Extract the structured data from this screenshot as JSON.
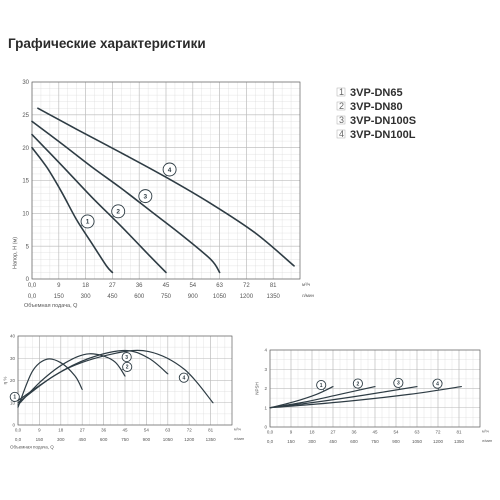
{
  "page": {
    "title": "Графические характеристики"
  },
  "legend": [
    {
      "num": "1",
      "name": "3VP-DN65"
    },
    {
      "num": "2",
      "name": "3VP-DN80"
    },
    {
      "num": "3",
      "name": "3VP-DN100S"
    },
    {
      "num": "4",
      "name": "3VP-DN100L"
    }
  ],
  "chart_data": [
    {
      "id": "head",
      "type": "line",
      "xlabel": "Объемная подача, Q",
      "ylabel": "Напор, Н (м)",
      "x_unit_primary": "м³/ч",
      "x_unit_secondary": "л/мин",
      "xlim": [
        0,
        90
      ],
      "ylim": [
        0,
        30
      ],
      "x_ticks": [
        "0,0",
        "9",
        "18",
        "27",
        "36",
        "45",
        "54",
        "63",
        "72",
        "81"
      ],
      "x_ticks_secondary": [
        "0,0",
        "150",
        "300",
        "450",
        "600",
        "750",
        "900",
        "1050",
        "1200",
        "1350"
      ],
      "y_ticks": [
        "0",
        "5",
        "10",
        "15",
        "20",
        "25",
        "30"
      ],
      "grid": true,
      "legend_position": "right",
      "series": [
        {
          "label": "1",
          "x": [
            0,
            5,
            10,
            15,
            20,
            25,
            27
          ],
          "y": [
            20,
            17,
            13.2,
            9,
            5.5,
            2,
            1
          ]
        },
        {
          "label": "2",
          "x": [
            0,
            10,
            20,
            30,
            40,
            45
          ],
          "y": [
            22,
            17.3,
            12.5,
            8,
            3.3,
            1
          ]
        },
        {
          "label": "3",
          "x": [
            0,
            10,
            20,
            30,
            40,
            50,
            60,
            63
          ],
          "y": [
            24,
            20.6,
            17.1,
            13.8,
            10.3,
            6.8,
            3,
            1
          ]
        },
        {
          "label": "4",
          "x": [
            2,
            15,
            30,
            45,
            60,
            75,
            88
          ],
          "y": [
            26,
            22.8,
            19.2,
            15.5,
            11.5,
            7,
            2
          ]
        }
      ]
    },
    {
      "id": "efficiency",
      "type": "line",
      "xlabel": "Объемная подача, Q",
      "ylabel": "η %",
      "x_unit_primary": "м³/ч",
      "x_unit_secondary": "л/мин",
      "xlim": [
        0,
        90
      ],
      "ylim": [
        0,
        40
      ],
      "x_ticks": [
        "0,0",
        "9",
        "18",
        "27",
        "36",
        "45",
        "54",
        "63",
        "72",
        "81"
      ],
      "x_ticks_secondary": [
        "0,0",
        "150",
        "300",
        "450",
        "600",
        "750",
        "900",
        "1050",
        "1200",
        "1350"
      ],
      "y_ticks": [
        "0",
        "10",
        "20",
        "30",
        "40"
      ],
      "grid": true,
      "series": [
        {
          "label": "1",
          "x": [
            0,
            6,
            12,
            18,
            24,
            27
          ],
          "y": [
            8,
            24,
            29.5,
            28,
            22,
            16
          ]
        },
        {
          "label": "2",
          "x": [
            0,
            10,
            20,
            30,
            40,
            45
          ],
          "y": [
            9,
            20,
            28,
            32,
            29,
            22
          ]
        },
        {
          "label": "3",
          "x": [
            0,
            15,
            30,
            45,
            55,
            63
          ],
          "y": [
            10,
            22,
            30,
            33.5,
            30,
            23
          ]
        },
        {
          "label": "4",
          "x": [
            0,
            20,
            40,
            55,
            70,
            82
          ],
          "y": [
            11,
            25,
            32,
            33,
            25,
            10
          ]
        }
      ]
    },
    {
      "id": "npsh",
      "type": "line",
      "xlabel": "",
      "ylabel": "NPSH",
      "x_unit_primary": "м³/ч",
      "x_unit_secondary": "л/мин",
      "xlim": [
        0,
        90
      ],
      "ylim": [
        0,
        4
      ],
      "x_ticks": [
        "0,0",
        "9",
        "18",
        "27",
        "36",
        "45",
        "54",
        "63",
        "72",
        "81"
      ],
      "x_ticks_secondary": [
        "0,0",
        "150",
        "300",
        "450",
        "600",
        "750",
        "900",
        "1050",
        "1200",
        "1350"
      ],
      "y_ticks": [
        "0",
        "1",
        "2",
        "3",
        "4"
      ],
      "grid": true,
      "series": [
        {
          "label": "1",
          "x": [
            0,
            10,
            20,
            27
          ],
          "y": [
            1,
            1.3,
            1.7,
            2.1
          ]
        },
        {
          "label": "2",
          "x": [
            0,
            15,
            30,
            45
          ],
          "y": [
            1,
            1.3,
            1.7,
            2.1
          ]
        },
        {
          "label": "3",
          "x": [
            0,
            20,
            40,
            63
          ],
          "y": [
            1,
            1.3,
            1.65,
            2.1
          ]
        },
        {
          "label": "4",
          "x": [
            0,
            30,
            60,
            82
          ],
          "y": [
            1,
            1.3,
            1.7,
            2.1
          ]
        }
      ]
    }
  ],
  "colors": {
    "curve": "#2e3c44",
    "grid_major": "#b9b9b9",
    "grid_minor": "#d9d9d9"
  }
}
